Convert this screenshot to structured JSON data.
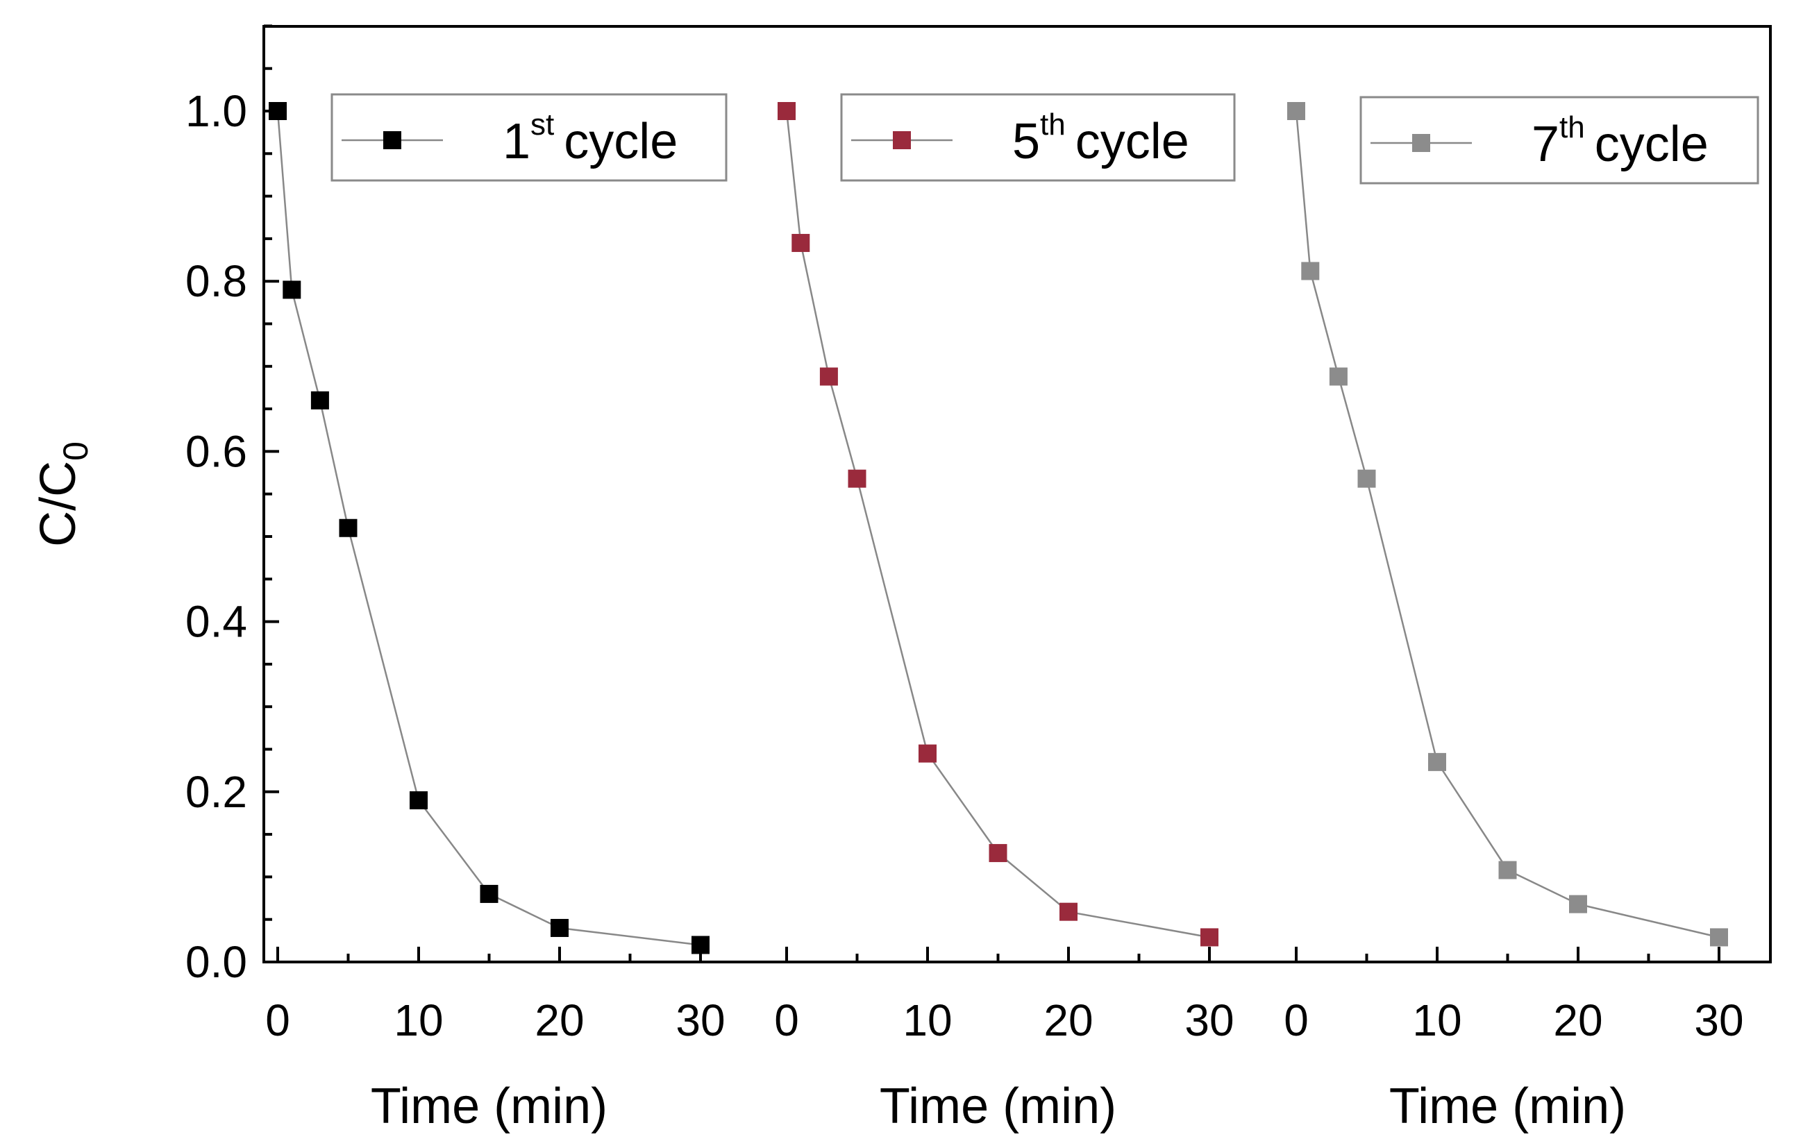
{
  "chart_data": {
    "type": "line",
    "marker": "square",
    "ylabel": "C/C",
    "ylabel_subscript": "0",
    "ylim": [
      0,
      1.1
    ],
    "yticks": [
      "0.0",
      "0.2",
      "0.4",
      "0.6",
      "0.8",
      "1.0"
    ],
    "ytick_values": [
      0,
      0.2,
      0.4,
      0.6,
      0.8,
      1.0
    ],
    "xlabel": "Time (min)",
    "xlim": [
      -1,
      32
    ],
    "xticks": [
      "0",
      "10",
      "20",
      "30"
    ],
    "xtick_values": [
      0,
      10,
      20,
      30
    ],
    "line_color": "#888888",
    "series": [
      {
        "name": "1st cycle",
        "legend_number": "1",
        "legend_sup": "st",
        "legend_word": "cycle",
        "color": "#000000",
        "x": [
          0,
          1,
          3,
          5,
          10,
          15,
          20,
          30
        ],
        "y": [
          1.0,
          0.79,
          0.66,
          0.51,
          0.19,
          0.08,
          0.04,
          0.02
        ]
      },
      {
        "name": "5th cycle",
        "legend_number": "5",
        "legend_sup": "th",
        "legend_word": "cycle",
        "color": "#9a2a3c",
        "x": [
          0,
          1,
          3,
          5,
          10,
          15,
          20,
          30
        ],
        "y": [
          1.0,
          0.845,
          0.688,
          0.568,
          0.245,
          0.128,
          0.059,
          0.029
        ]
      },
      {
        "name": "7th cycle",
        "legend_number": "7",
        "legend_sup": "th",
        "legend_word": "cycle",
        "color": "#8c8c8c",
        "x": [
          0,
          1,
          3,
          5,
          10,
          15,
          20,
          30
        ],
        "y": [
          1.0,
          0.812,
          0.688,
          0.568,
          0.235,
          0.108,
          0.068,
          0.029
        ]
      }
    ]
  }
}
